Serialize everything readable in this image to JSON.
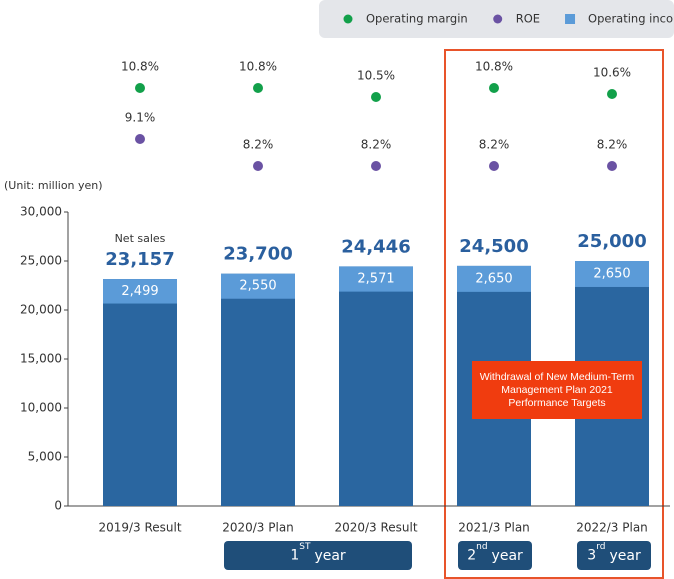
{
  "chart_data": {
    "type": "bar",
    "y_axis_label": "(Unit: million yen)",
    "categories": [
      "2019/3 Result",
      "2020/3 Plan",
      "2020/3 Result",
      "2021/3 Plan",
      "2022/3 Plan"
    ],
    "ylim": [
      0,
      30000
    ],
    "yticks": [
      0,
      {
        "value": 5000,
        "label": "5,000"
      },
      {
        "value": 10000,
        "label": "10,000"
      },
      {
        "value": 15000,
        "label": "15,000"
      },
      {
        "value": 20000,
        "label": "20,000"
      },
      {
        "value": 25000,
        "label": "25,000"
      },
      {
        "value": 30000,
        "label": "30,000"
      }
    ],
    "net_sales": {
      "label": "Net sales",
      "color": "#2a66a0",
      "values": [
        23157,
        23700,
        24446,
        24500,
        25000
      ],
      "value_labels": [
        "23,157",
        "23,700",
        "24,446",
        "24,500",
        "25,000"
      ]
    },
    "series": [
      {
        "name": "Operating margin",
        "marker": "circle",
        "color": "#12a04a",
        "values": [
          10.8,
          10.8,
          10.5,
          10.8,
          10.6
        ],
        "value_labels": [
          "10.8%",
          "10.8%",
          "10.5%",
          "10.8%",
          "10.6%"
        ]
      },
      {
        "name": "ROE",
        "marker": "circle",
        "color": "#6a52a3",
        "values": [
          9.1,
          8.2,
          8.2,
          8.2,
          8.2
        ],
        "value_labels": [
          "9.1%",
          "8.2%",
          "8.2%",
          "8.2%",
          "8.2%"
        ]
      },
      {
        "name": "Operating income",
        "marker": "square",
        "color": "#5b9bd8",
        "values": [
          2499,
          2550,
          2571,
          2650,
          2650
        ],
        "value_labels": [
          "2,499",
          "2,550",
          "2,571",
          "2,650",
          "2,650"
        ]
      }
    ],
    "annotation": "Withdrawal of New Medium-Term Management Plan 2021 Performance Targets",
    "year_badges": [
      {
        "number": "1",
        "suffix": "ST",
        "text": "year"
      },
      {
        "number": "2",
        "suffix": "nd",
        "text": "year"
      },
      {
        "number": "3",
        "suffix": "rd",
        "text": "year"
      }
    ]
  }
}
